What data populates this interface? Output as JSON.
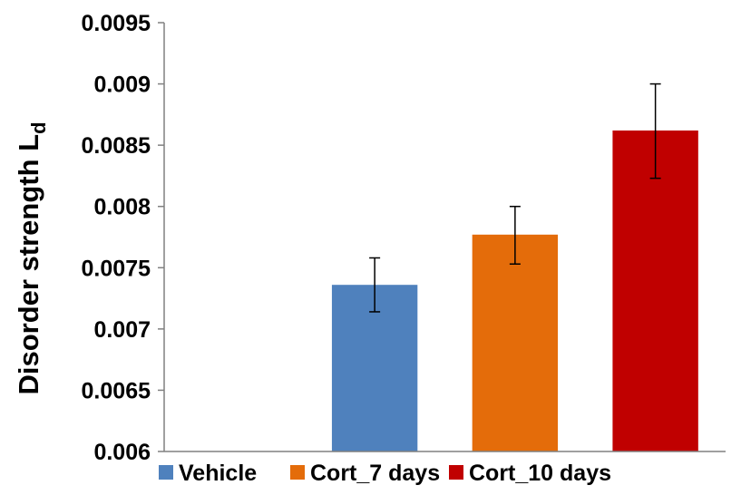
{
  "chart_data": {
    "type": "bar",
    "categories": [
      "",
      "Vehicle",
      "Cort_7 days",
      "Cort_10 days"
    ],
    "series": [
      {
        "name": "Vehicle",
        "color": "#4f81bd",
        "x_index": 1,
        "value": 0.00736,
        "error_low": 0.00714,
        "error_high": 0.00758
      },
      {
        "name": "Cort_7 days",
        "color": "#e46c0a",
        "x_index": 2,
        "value": 0.00777,
        "error_low": 0.00753,
        "error_high": 0.008
      },
      {
        "name": "Cort_10 days",
        "color": "#c00000",
        "x_index": 3,
        "value": 0.00862,
        "error_low": 0.00823,
        "error_high": 0.009
      }
    ],
    "ylabel": "Disorder strength L",
    "ylabel_subscript": "d",
    "xlabel": "",
    "title": "",
    "ylim": [
      0.006,
      0.0095
    ],
    "yticks": [
      "0.006",
      "0.0065",
      "0.007",
      "0.0075",
      "0.008",
      "0.0085",
      "0.009",
      "0.0095"
    ],
    "grid": false,
    "legend_position": "bottom"
  }
}
